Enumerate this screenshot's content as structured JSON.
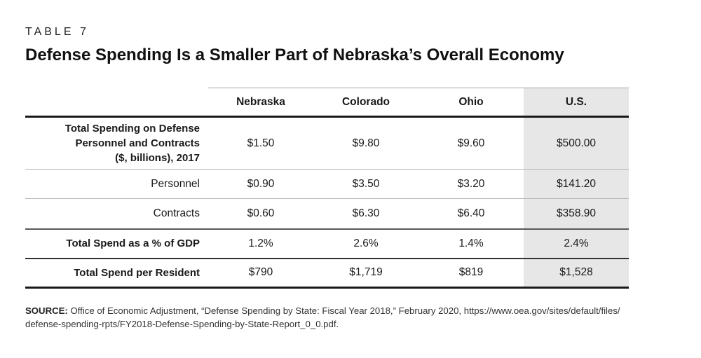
{
  "header": {
    "kicker": "TABLE 7",
    "title": "Defense Spending Is a Smaller Part of Nebraska’s Overall Economy"
  },
  "table": {
    "columns": [
      "Nebraska",
      "Colorado",
      "Ohio",
      "U.S."
    ],
    "highlighted_column": "U.S.",
    "highlight_color": "#e7e7e7",
    "rows": [
      {
        "label": "Total Spending on Defense Personnel and Contracts ($, billions), 2017",
        "label_lines": [
          "Total Spending on Defense",
          "Personnel and Contracts",
          "($, billions), 2017"
        ],
        "values": [
          "$1.50",
          "$9.80",
          "$9.60",
          "$500.00"
        ]
      },
      {
        "label": "Personnel",
        "values": [
          "$0.90",
          "$3.50",
          "$3.20",
          "$141.20"
        ]
      },
      {
        "label": "Contracts",
        "values": [
          "$0.60",
          "$6.30",
          "$6.40",
          "$358.90"
        ]
      },
      {
        "label": "Total Spend as a % of GDP",
        "values": [
          "1.2%",
          "2.6%",
          "1.4%",
          "2.4%"
        ]
      },
      {
        "label": "Total Spend per Resident",
        "values": [
          "$790",
          "$1,719",
          "$819",
          "$1,528"
        ]
      }
    ]
  },
  "source": {
    "prefix": "SOURCE:",
    "line1": " Office of Economic Adjustment, “Defense Spending by State: Fiscal Year 2018,” February 2020, https://www.oea.gov/sites/default/files/",
    "line2": "defense-spending-rpts/FY2018-Defense-Spending-by-State-Report_0_0.pdf."
  },
  "chart_data": {
    "type": "table",
    "title": "Defense Spending Is a Smaller Part of Nebraska’s Overall Economy",
    "columns": [
      "Nebraska",
      "Colorado",
      "Ohio",
      "U.S."
    ],
    "rows": [
      {
        "label": "Total Spending on Defense Personnel and Contracts ($, billions), 2017",
        "values": [
          1.5,
          9.8,
          9.6,
          500.0
        ]
      },
      {
        "label": "Personnel",
        "values": [
          0.9,
          3.5,
          3.2,
          141.2
        ]
      },
      {
        "label": "Contracts",
        "values": [
          0.6,
          6.3,
          6.4,
          358.9
        ]
      },
      {
        "label": "Total Spend as a % of GDP",
        "values": [
          "1.2%",
          "2.6%",
          "1.4%",
          "2.4%"
        ]
      },
      {
        "label": "Total Spend per Resident",
        "values": [
          "$790",
          "$1,719",
          "$819",
          "$1,528"
        ]
      }
    ]
  },
  "colors": {
    "text": "#1a1a1a",
    "shade": "#e7e7e7",
    "thin_rule": "#b3b3b3",
    "medium_rule": "#4a4a4a",
    "thick_rule": "#191919"
  }
}
